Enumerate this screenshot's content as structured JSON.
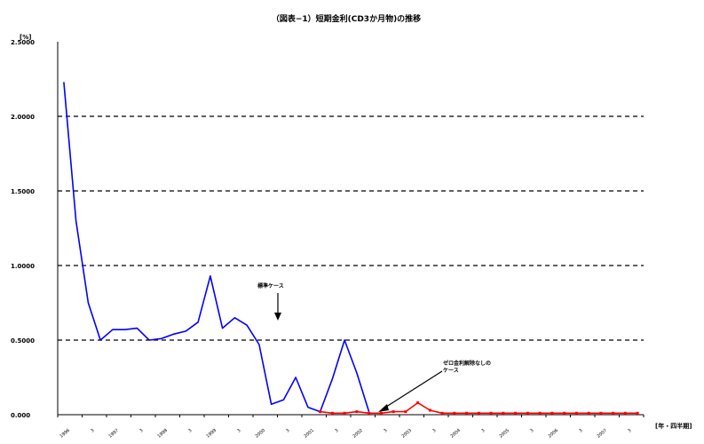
{
  "chart_data": {
    "type": "line",
    "title": "（図表−1）短期金利(CD3か月物)の推移",
    "y_unit_label": "[%]",
    "x_unit_label": "[年・四半期]",
    "ylim": [
      0,
      2.5
    ],
    "y_tick_labels": [
      "0.000",
      "0.5000",
      "1.0000",
      "1.5000",
      "2.0000",
      "2.5000"
    ],
    "y_ticks": [
      0,
      0.5,
      1.0,
      1.5,
      2.0,
      2.5
    ],
    "grid": "horizontal-dashed",
    "x_tick_labels": [
      "1996",
      "3",
      "1997",
      "3",
      "1998",
      "3",
      "1999",
      "3",
      "2000",
      "3",
      "2001",
      "3",
      "2002",
      "3",
      "2003",
      "3",
      "2004",
      "3",
      "2005",
      "3",
      "2006",
      "3",
      "2007",
      "3"
    ],
    "series": [
      {
        "color": "#0000ff",
        "points": [
          [
            0,
            2.23
          ],
          [
            1,
            1.3
          ],
          [
            2,
            0.75
          ],
          [
            3,
            0.5
          ],
          [
            4,
            0.57
          ],
          [
            5,
            0.57
          ],
          [
            6,
            0.58
          ],
          [
            7,
            0.5
          ],
          [
            8,
            0.51
          ],
          [
            9,
            0.54
          ],
          [
            10,
            0.56
          ],
          [
            11,
            0.62
          ],
          [
            12,
            0.93
          ],
          [
            13,
            0.58
          ],
          [
            14,
            0.65
          ],
          [
            15,
            0.6
          ],
          [
            16,
            0.47
          ],
          [
            17,
            0.07
          ],
          [
            18,
            0.1
          ],
          [
            19,
            0.25
          ],
          [
            20,
            0.05
          ],
          [
            21,
            0.02
          ],
          [
            22,
            0.24
          ],
          [
            23,
            0.5
          ],
          [
            24,
            0.28
          ],
          [
            25,
            0.02
          ]
        ]
      },
      {
        "color": "#ff0000",
        "points": [
          [
            21,
            0.02
          ],
          [
            22,
            0.01
          ],
          [
            23,
            0.01
          ],
          [
            24,
            0.02
          ],
          [
            25,
            0.01
          ],
          [
            26,
            0.01
          ],
          [
            27,
            0.02
          ],
          [
            28,
            0.02
          ],
          [
            29,
            0.08
          ],
          [
            30,
            0.03
          ],
          [
            31,
            0.01
          ],
          [
            32,
            0.01
          ],
          [
            33,
            0.01
          ],
          [
            34,
            0.01
          ],
          [
            35,
            0.01
          ],
          [
            36,
            0.01
          ],
          [
            37,
            0.01
          ],
          [
            38,
            0.01
          ],
          [
            39,
            0.01
          ],
          [
            40,
            0.01
          ],
          [
            41,
            0.01
          ],
          [
            42,
            0.01
          ],
          [
            43,
            0.01
          ],
          [
            44,
            0.01
          ],
          [
            45,
            0.01
          ],
          [
            46,
            0.01
          ],
          [
            47,
            0.01
          ]
        ]
      }
    ],
    "annotations": [
      {
        "text": "標準ケース",
        "lines": [
          "標準ケース"
        ],
        "color": "#000000"
      },
      {
        "text": "ゼロ金利解除なしのケース",
        "lines": [
          "ゼロ金利解除なしの",
          "ケース"
        ],
        "color": "#000000"
      }
    ]
  }
}
